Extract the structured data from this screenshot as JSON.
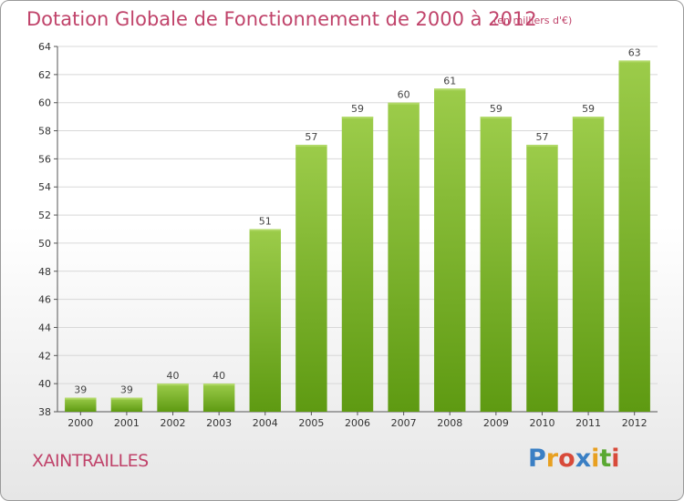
{
  "title": "Dotation Globale de Fonctionnement de 2000 à 2012",
  "unit_note": "(en milliers d'€)",
  "commune": "XAINTRAILLES",
  "logo": {
    "letters": [
      "P",
      "r",
      "o",
      "x",
      "i",
      "t",
      "i"
    ],
    "colors": [
      "#3a7fc4",
      "#e8a020",
      "#d84a3a",
      "#3a7fc4",
      "#e8a020",
      "#5aa832",
      "#d84a3a"
    ]
  },
  "colors": {
    "bar_light": "#9ccc4a",
    "bar_dark": "#5e9a12",
    "title": "#c0436a",
    "grid": "#d8d8d8"
  },
  "chart_data": {
    "type": "bar",
    "categories": [
      "2000",
      "2001",
      "2002",
      "2003",
      "2004",
      "2005",
      "2006",
      "2007",
      "2008",
      "2009",
      "2010",
      "2011",
      "2012"
    ],
    "values": [
      39,
      39,
      40,
      40,
      51,
      57,
      59,
      60,
      61,
      59,
      57,
      59,
      63
    ],
    "ylim": [
      38,
      64
    ],
    "yticks": [
      38,
      40,
      42,
      44,
      46,
      48,
      50,
      52,
      54,
      56,
      58,
      60,
      62,
      64
    ],
    "grid": true,
    "title": "Dotation Globale de Fonctionnement de 2000 à 2012"
  }
}
